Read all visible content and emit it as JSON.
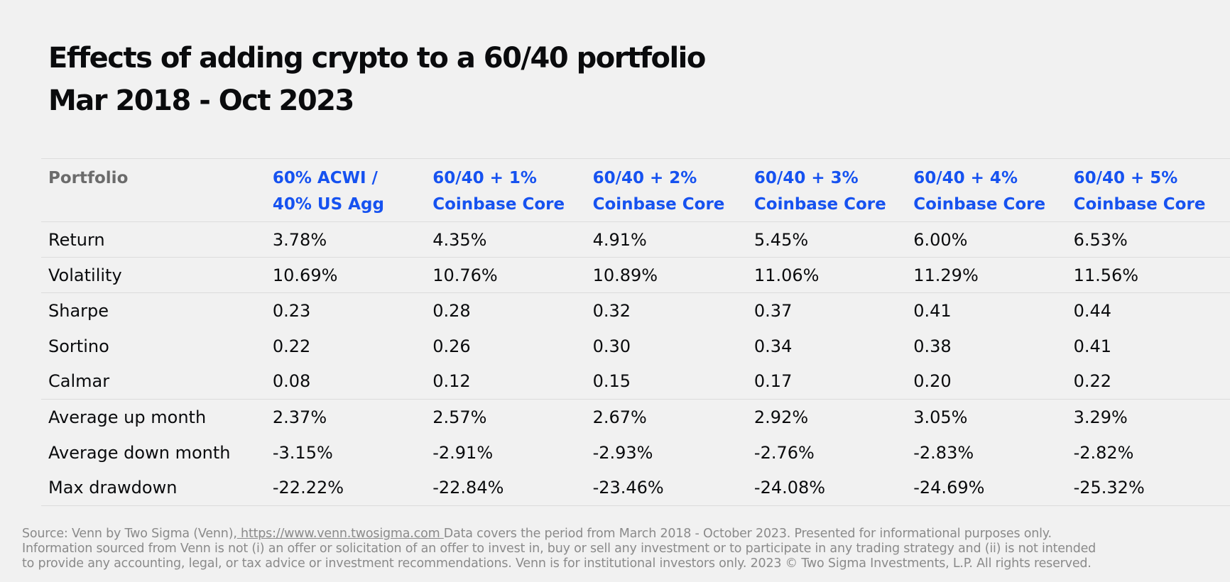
{
  "chart_data": {
    "type": "table",
    "title": "Effects of adding crypto to a 60/40 portfolio",
    "subtitle": "Mar 2018 - Oct 2023",
    "row_header": "Portfolio",
    "columns": [
      {
        "line1": "60% ACWI /",
        "line2": "40% US Agg"
      },
      {
        "line1": "60/40 + 1%",
        "line2": "Coinbase Core"
      },
      {
        "line1": "60/40 + 2%",
        "line2": "Coinbase Core"
      },
      {
        "line1": "60/40 + 3%",
        "line2": "Coinbase Core"
      },
      {
        "line1": "60/40 + 4%",
        "line2": "Coinbase Core"
      },
      {
        "line1": "60/40 + 5%",
        "line2": "Coinbase Core"
      }
    ],
    "rows": [
      {
        "label": "Return",
        "values": [
          "3.78%",
          "4.35%",
          "4.91%",
          "5.45%",
          "6.00%",
          "6.53%"
        ]
      },
      {
        "label": "Volatility",
        "values": [
          "10.69%",
          "10.76%",
          "10.89%",
          "11.06%",
          "11.29%",
          "11.56%"
        ]
      },
      {
        "label": "Sharpe",
        "values": [
          "0.23",
          "0.28",
          "0.32",
          "0.37",
          "0.41",
          "0.44"
        ]
      },
      {
        "label": "Sortino",
        "values": [
          "0.22",
          "0.26",
          "0.30",
          "0.34",
          "0.38",
          "0.41"
        ]
      },
      {
        "label": "Calmar",
        "values": [
          "0.08",
          "0.12",
          "0.15",
          "0.17",
          "0.20",
          "0.22"
        ]
      },
      {
        "label": "Average up month",
        "values": [
          "2.37%",
          "2.57%",
          "2.67%",
          "2.92%",
          "3.05%",
          "3.29%"
        ]
      },
      {
        "label": "Average down month",
        "values": [
          "-3.15%",
          "-2.91%",
          "-2.93%",
          "-2.76%",
          "-2.83%",
          "-2.82%"
        ]
      },
      {
        "label": "Max drawdown",
        "values": [
          "-22.22%",
          "-22.84%",
          "-23.46%",
          "-24.08%",
          "-24.69%",
          "-25.32%"
        ]
      }
    ]
  },
  "footnote": {
    "source_prefix": "Source: Venn by Two Sigma (Venn),",
    "link_text": " https://www.venn.twosigma.com ",
    "line1_suffix": " Data covers the period from March 2018 - October 2023. Presented for informational purposes only.",
    "line2": "Information sourced from Venn is not (i) an offer or solicitation of an offer to invest in, buy or sell any investment or to participate in any trading strategy and (ii) is not intended",
    "line3": "to provide any accounting, legal, or tax advice or investment recommendations. Venn is for institutional investors only. 2023 © Two Sigma Investments, L.P. All rights reserved."
  },
  "colors": {
    "accent_blue": "#1652f0",
    "row_header_gray": "#6b6b6b",
    "footnote_gray": "#8a8a8a",
    "background": "#f1f1f1"
  }
}
